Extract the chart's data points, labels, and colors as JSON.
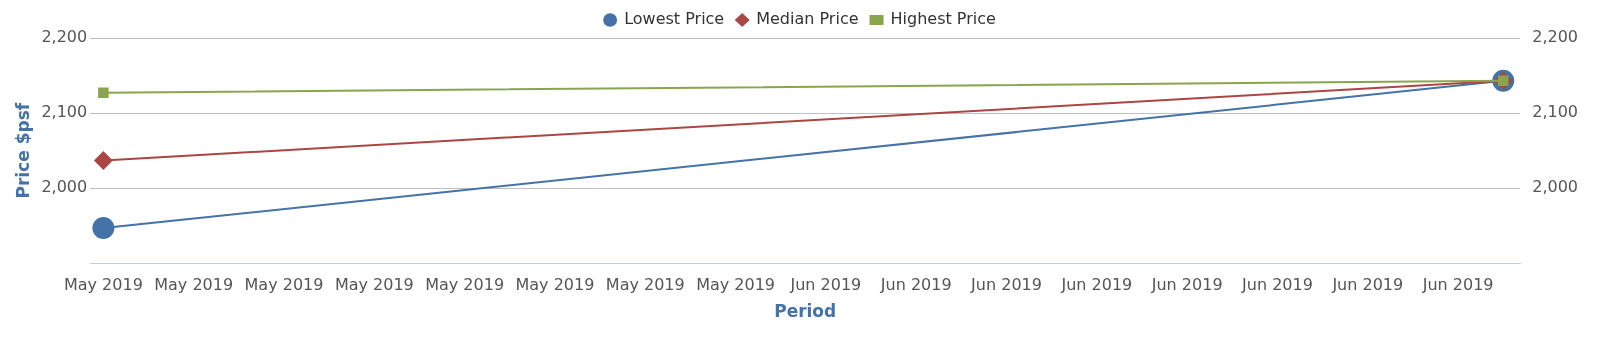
{
  "chart_data": {
    "type": "line",
    "xlabel": "Period",
    "ylabel": "Price $psf",
    "x": [
      "2019-05-16",
      "2019-06-16"
    ],
    "series": [
      {
        "name": "Lowest Price",
        "color": "#4572a7",
        "marker": "circle",
        "values": [
          1947,
          2143
        ]
      },
      {
        "name": "Median Price",
        "color": "#aa4643",
        "marker": "diamond",
        "values": [
          2037,
          2143
        ]
      },
      {
        "name": "Highest Price",
        "color": "#89a54e",
        "marker": "square",
        "values": [
          2127,
          2143
        ]
      }
    ],
    "xlim": [
      "2019-05-15T17:00",
      "2019-06-16T09:00"
    ],
    "xticks": [
      {
        "value": "2019-05-16",
        "label": "May 2019"
      },
      {
        "value": "2019-05-18",
        "label": "May 2019"
      },
      {
        "value": "2019-05-20",
        "label": "May 2019"
      },
      {
        "value": "2019-05-22",
        "label": "May 2019"
      },
      {
        "value": "2019-05-24",
        "label": "May 2019"
      },
      {
        "value": "2019-05-26",
        "label": "May 2019"
      },
      {
        "value": "2019-05-28",
        "label": "May 2019"
      },
      {
        "value": "2019-05-30",
        "label": "May 2019"
      },
      {
        "value": "2019-06-01",
        "label": "Jun 2019"
      },
      {
        "value": "2019-06-03",
        "label": "Jun 2019"
      },
      {
        "value": "2019-06-05",
        "label": "Jun 2019"
      },
      {
        "value": "2019-06-07",
        "label": "Jun 2019"
      },
      {
        "value": "2019-06-09",
        "label": "Jun 2019"
      },
      {
        "value": "2019-06-11",
        "label": "Jun 2019"
      },
      {
        "value": "2019-06-13",
        "label": "Jun 2019"
      },
      {
        "value": "2019-06-15",
        "label": "Jun 2019"
      }
    ],
    "ylim": [
      1900,
      2200
    ],
    "yticks": [
      {
        "value": 2000,
        "label": "2,000"
      },
      {
        "value": 2100,
        "label": "2,100"
      },
      {
        "value": 2200,
        "label": "2,200"
      }
    ],
    "y2lim": [
      1900,
      2200
    ],
    "y2ticks": [
      {
        "value": 2000,
        "label": "2,000"
      },
      {
        "value": 2100,
        "label": "2,100"
      },
      {
        "value": 2200,
        "label": "2,200"
      }
    ],
    "grid": "y",
    "legend": "top",
    "line_style": "solid"
  }
}
